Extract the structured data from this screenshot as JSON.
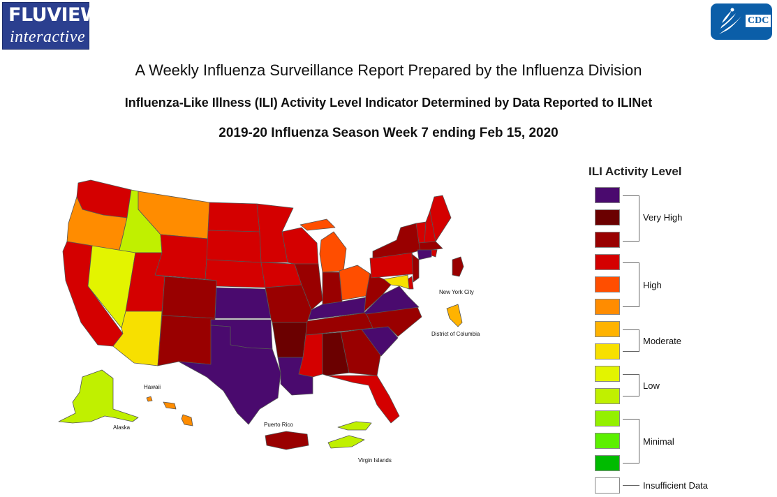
{
  "logos": {
    "fluview_line1": "FLUVIEW",
    "fluview_line2": "interactive",
    "cdc": "CDC"
  },
  "titles": {
    "main": "A Weekly Influenza Surveillance Report Prepared by the Influenza Division",
    "sub": "Influenza-Like Illness (ILI) Activity Level Indicator Determined by Data Reported to ILINet",
    "week": "2019-20 Influenza Season Week 7 ending Feb 15, 2020"
  },
  "map_labels": {
    "new_york_city": "New York City",
    "district_of_columbia": "District of Columbia",
    "hawaii": "Hawaii",
    "alaska": "Alaska",
    "puerto_rico": "Puerto Rico",
    "virgin_islands": "Virgin Islands"
  },
  "legend": {
    "title": "ILI Activity Level",
    "levels": [
      {
        "level": 13,
        "color": "#4a0a6e"
      },
      {
        "level": 12,
        "color": "#6b0000"
      },
      {
        "level": 11,
        "color": "#990000"
      },
      {
        "level": 10,
        "color": "#d40000"
      },
      {
        "level": 9,
        "color": "#ff4e00"
      },
      {
        "level": 8,
        "color": "#ff8c00"
      },
      {
        "level": 7,
        "color": "#ffb300"
      },
      {
        "level": 6,
        "color": "#f7e000"
      },
      {
        "level": 5,
        "color": "#e3f400"
      },
      {
        "level": 4,
        "color": "#c0f000"
      },
      {
        "level": 3,
        "color": "#94f000"
      },
      {
        "level": 2,
        "color": "#5cf000"
      },
      {
        "level": 1,
        "color": "#00bb00"
      },
      {
        "level": 0,
        "color": "#ffffff"
      }
    ],
    "groups": {
      "very_high": "Very High",
      "high": "High",
      "moderate": "Moderate",
      "low": "Low",
      "minimal": "Minimal",
      "insufficient": "Insufficient Data"
    }
  },
  "states": {
    "Washington": 10,
    "Oregon": 8,
    "Idaho": 4,
    "Montana": 8,
    "Wyoming": 10,
    "California": 10,
    "Nevada": 5,
    "Utah": 10,
    "Arizona": 6,
    "Colorado": 11,
    "New Mexico": 11,
    "North Dakota": 10,
    "South Dakota": 10,
    "Nebraska": 10,
    "Kansas": 13,
    "Oklahoma": 13,
    "Texas": 13,
    "Minnesota": 10,
    "Iowa": 10,
    "Missouri": 11,
    "Arkansas": 12,
    "Louisiana": 13,
    "Wisconsin": 10,
    "Illinois": 11,
    "Michigan": 9,
    "Indiana": 11,
    "Ohio": 9,
    "Kentucky": 13,
    "Tennessee": 11,
    "Mississippi": 10,
    "Alabama": 12,
    "Georgia": 11,
    "Florida": 10,
    "South Carolina": 13,
    "North Carolina": 11,
    "Virginia": 13,
    "West Virginia": 11,
    "Pennsylvania": 10,
    "New York": 11,
    "Vermont": 10,
    "New Hampshire": 10,
    "Maine": 10,
    "Massachusetts": 11,
    "Rhode Island": 10,
    "Connecticut": 13,
    "New Jersey": 11,
    "Delaware": 10,
    "Maryland": 6,
    "New York City": 11,
    "District of Columbia": 7,
    "Alaska": 4,
    "Hawaii": 8,
    "Puerto Rico": 11,
    "Virgin Islands": 4
  }
}
